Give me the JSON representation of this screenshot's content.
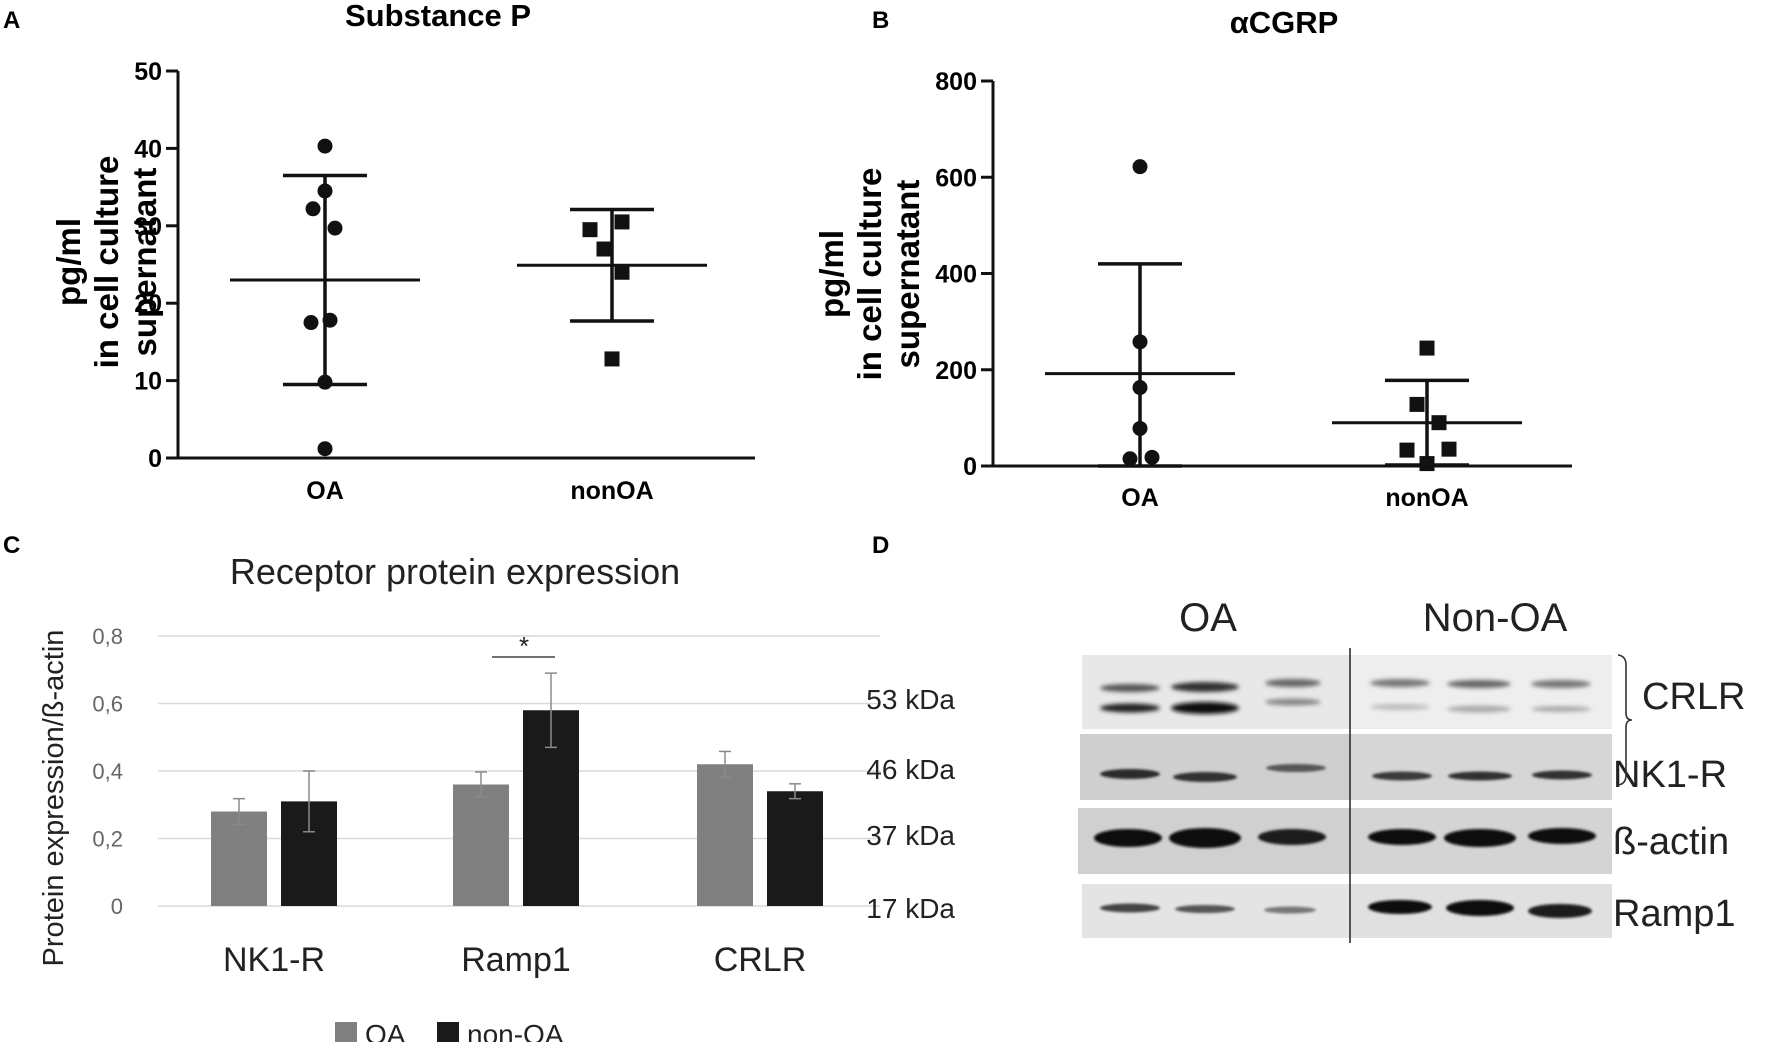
{
  "panels": {
    "a": "A",
    "b": "B",
    "c": "C",
    "d": "D"
  },
  "chart_data": [
    {
      "type": "scatter",
      "panel": "A",
      "title": "Substance P",
      "ylabel": [
        "pg/ml",
        "in cell culture",
        "supernatant"
      ],
      "categories": [
        "OA",
        "nonOA"
      ],
      "ylim": [
        0,
        50
      ],
      "yticks": [
        0,
        10,
        20,
        30,
        40,
        50
      ],
      "series": [
        {
          "name": "OA",
          "marker": "circle",
          "values": [
            40.3,
            34.5,
            32.2,
            29.7,
            17.8,
            17.5,
            9.8,
            1.2
          ],
          "mean": 23.0,
          "err_low": 9.5,
          "err_high": 36.5
        },
        {
          "name": "nonOA",
          "marker": "square",
          "values": [
            30.5,
            29.5,
            27.0,
            24.0,
            12.8
          ],
          "mean": 24.9,
          "err_low": 17.7,
          "err_high": 32.1
        }
      ]
    },
    {
      "type": "scatter",
      "panel": "B",
      "title": "αCGRP",
      "ylabel": [
        "pg/ml",
        "in cell culture",
        "supernatant"
      ],
      "categories": [
        "OA",
        "nonOA"
      ],
      "ylim": [
        0,
        800
      ],
      "yticks": [
        0,
        200,
        400,
        600,
        800
      ],
      "series": [
        {
          "name": "OA",
          "marker": "circle",
          "values": [
            622,
            258,
            163,
            78,
            18,
            15
          ],
          "mean": 192,
          "err_low": 0,
          "err_high": 420
        },
        {
          "name": "nonOA",
          "marker": "square",
          "values": [
            245,
            128,
            90,
            35,
            33,
            5
          ],
          "mean": 90,
          "err_low": 2,
          "err_high": 178
        }
      ]
    },
    {
      "type": "bar",
      "panel": "C",
      "title": "Receptor protein expression",
      "ylabel": "Protein expression/ß-actin",
      "categories": [
        "NK1-R",
        "Ramp1",
        "CRLR"
      ],
      "ylim": [
        0,
        0.8
      ],
      "yticks": [
        "0",
        "0,2",
        "0,4",
        "0,6",
        "0,8"
      ],
      "significance": "*",
      "series": [
        {
          "name": "OA",
          "color": "#808080",
          "values": [
            0.28,
            0.36,
            0.42
          ],
          "errors": [
            0.038,
            0.037,
            0.038
          ]
        },
        {
          "name": "non-OA",
          "color": "#1a1a1a",
          "values": [
            0.31,
            0.58,
            0.34
          ],
          "errors": [
            0.09,
            0.11,
            0.022
          ]
        }
      ]
    }
  ],
  "blot": {
    "group_labels": [
      "OA",
      "Non-OA"
    ],
    "rows": [
      {
        "kda": "53 kDa",
        "protein": "CRLR"
      },
      {
        "kda": "46 kDa",
        "protein": "NK1-R"
      },
      {
        "kda": "37 kDa",
        "protein": "ß-actin"
      },
      {
        "kda": "17 kDa",
        "protein": "Ramp1"
      }
    ]
  }
}
